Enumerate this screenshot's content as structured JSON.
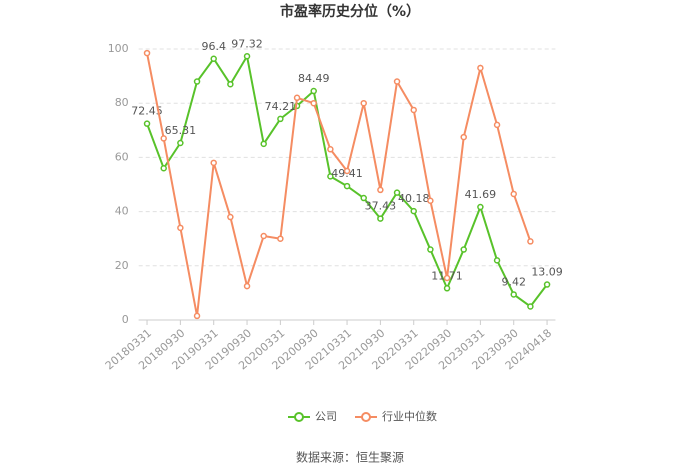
{
  "chart_data": {
    "type": "line",
    "title": "市盈率历史分位（%）",
    "categories": [
      "20180331",
      null,
      "20180930",
      null,
      "20190331",
      null,
      "20190930",
      null,
      "20200331",
      null,
      "20200930",
      null,
      "20210331",
      null,
      "20210930",
      null,
      "20220331",
      null,
      "20220930",
      null,
      "20230331",
      null,
      "20230930",
      null,
      "20240418"
    ],
    "series": [
      {
        "name": "公司",
        "color": "#58c22a",
        "values": [
          72.45,
          56,
          65.31,
          88,
          96.4,
          87,
          97.32,
          65,
          74.21,
          79,
          84.49,
          53,
          49.41,
          45,
          37.43,
          47,
          40.18,
          26,
          11.71,
          26,
          41.69,
          22,
          9.42,
          5,
          13.09
        ]
      },
      {
        "name": "行业中位数",
        "color": "#f58c62",
        "values": [
          98.5,
          67,
          34,
          1.5,
          58,
          38,
          12.5,
          31,
          30,
          82,
          80,
          63,
          55,
          80,
          48,
          88,
          77.5,
          44,
          15.5,
          67.5,
          93,
          72,
          46.5,
          29,
          null
        ]
      }
    ],
    "ylim": [
      0,
      100
    ],
    "yticks": [
      0,
      20,
      40,
      60,
      80,
      100
    ],
    "grid": true,
    "legend": "bottom",
    "source": "数据来源：恒生聚源"
  }
}
